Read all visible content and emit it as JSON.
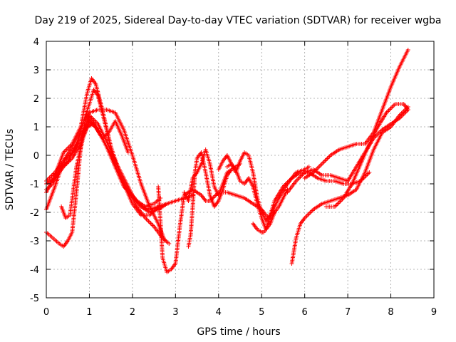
{
  "chart_data": {
    "type": "scatter",
    "title": "Day 219 of 2025, Sidereal Day-to-day VTEC variation (SDTVAR) for receiver wgba",
    "xlabel": "GPS time / hours",
    "ylabel": "SDTVAR / TECUs",
    "xlim": [
      0,
      9
    ],
    "ylim": [
      -5,
      4
    ],
    "x_ticks": [
      0,
      1,
      2,
      3,
      4,
      5,
      6,
      7,
      8,
      9
    ],
    "y_ticks": [
      -5,
      -4,
      -3,
      -2,
      -1,
      0,
      1,
      2,
      3,
      4
    ],
    "grid": true,
    "marker": "+",
    "series_color": "#ff0000",
    "series": [
      {
        "x": [
          0.0,
          0.2,
          0.4,
          0.6,
          0.8,
          1.0,
          1.1,
          1.2,
          1.4,
          1.6,
          1.8,
          2.0,
          2.2,
          2.4,
          2.6,
          2.8
        ],
        "y": [
          -1.9,
          -1.1,
          -0.2,
          0.3,
          0.9,
          1.8,
          2.3,
          2.1,
          0.9,
          -0.4,
          -1.1,
          -1.4,
          -1.8,
          -2.0,
          -1.9,
          -1.7
        ]
      },
      {
        "x": [
          0.0,
          0.2,
          0.4,
          0.6,
          0.8,
          0.95,
          1.05,
          1.15,
          1.3,
          1.5,
          1.7,
          1.9,
          2.1,
          2.3,
          2.5,
          2.7,
          2.85
        ],
        "y": [
          -1.3,
          -0.7,
          0.1,
          0.4,
          1.0,
          2.2,
          2.7,
          2.5,
          1.6,
          0.3,
          -0.6,
          -1.2,
          -1.8,
          -2.2,
          -2.5,
          -2.9,
          -3.1
        ]
      },
      {
        "x": [
          0.0,
          0.2,
          0.4,
          0.6,
          0.8,
          1.0,
          1.2,
          1.4,
          1.6,
          1.8,
          2.0,
          2.2,
          2.4,
          2.6
        ],
        "y": [
          -1.0,
          -0.8,
          -0.4,
          -0.1,
          0.4,
          1.2,
          0.9,
          0.3,
          -0.4,
          -1.0,
          -1.7,
          -2.1,
          -2.1,
          -1.8
        ]
      },
      {
        "x": [
          0.0,
          0.2,
          0.4,
          0.6,
          0.8,
          1.0,
          1.2,
          1.4,
          1.6,
          1.8,
          2.0,
          2.2,
          2.4,
          2.6,
          2.8,
          3.0,
          3.2,
          3.4
        ],
        "y": [
          -0.9,
          -0.6,
          -0.2,
          0.1,
          0.6,
          1.4,
          1.1,
          0.5,
          -0.2,
          -0.8,
          -1.4,
          -1.8,
          -1.9,
          -1.8,
          -1.7,
          -1.6,
          -1.5,
          -1.4
        ]
      },
      {
        "x": [
          0.0,
          0.15,
          0.3,
          0.5,
          0.65,
          0.8,
          0.95,
          1.1,
          1.3,
          1.5,
          1.7,
          1.9,
          2.1,
          2.3,
          2.5,
          2.65
        ],
        "y": [
          -1.2,
          -1.0,
          -0.5,
          -0.2,
          0.2,
          0.8,
          1.0,
          1.1,
          0.6,
          0.0,
          -0.7,
          -1.3,
          -1.6,
          -1.8,
          -1.7,
          -1.5
        ]
      },
      {
        "x": [
          0.0,
          0.15,
          0.3,
          0.4,
          0.5,
          0.6,
          0.7,
          0.8,
          0.9,
          1.0,
          1.2,
          1.4,
          1.6,
          1.8,
          2.0,
          2.2,
          2.4,
          2.6,
          2.75
        ],
        "y": [
          -2.7,
          -2.9,
          -3.1,
          -3.2,
          -3.0,
          -2.7,
          -1.3,
          0.3,
          1.2,
          1.5,
          1.6,
          1.6,
          1.5,
          0.9,
          0.0,
          -1.0,
          -1.8,
          -2.4,
          -3.0
        ]
      },
      {
        "x": [
          0.35,
          0.45,
          0.55,
          0.7,
          0.85,
          1.0,
          1.15,
          1.3,
          1.45,
          1.6,
          1.75,
          1.9
        ],
        "y": [
          -1.8,
          -2.2,
          -2.1,
          -0.4,
          0.6,
          1.3,
          1.0,
          0.6,
          0.8,
          1.2,
          0.7,
          0.1
        ]
      },
      {
        "x": [
          2.6,
          2.7,
          2.8,
          2.9,
          3.0,
          3.1,
          3.2,
          3.4,
          3.6,
          3.7,
          3.8,
          4.0,
          4.2,
          4.4,
          4.6,
          4.8,
          5.0,
          5.1,
          5.2,
          5.4,
          5.6
        ],
        "y": [
          -1.1,
          -3.6,
          -4.1,
          -4.0,
          -3.8,
          -2.5,
          -1.4,
          -1.2,
          -1.4,
          -1.6,
          -1.6,
          -1.3,
          -1.3,
          -1.4,
          -1.5,
          -1.7,
          -1.9,
          -2.1,
          -2.2,
          -1.8,
          -1.2
        ]
      },
      {
        "x": [
          3.2,
          3.3,
          3.4,
          3.5,
          3.6,
          3.7,
          3.8,
          3.9,
          4.0,
          4.1,
          4.2,
          4.3,
          4.4,
          4.5
        ],
        "y": [
          -1.3,
          -1.6,
          -0.8,
          -0.6,
          -0.3,
          0.2,
          -0.3,
          -1.1,
          -1.4,
          -1.0,
          -0.6,
          -0.5,
          -0.4,
          -0.3
        ]
      },
      {
        "x": [
          3.3,
          3.35,
          3.4,
          3.45,
          3.5,
          3.6,
          3.7,
          3.8,
          3.9,
          4.0,
          4.1,
          4.2,
          4.3
        ],
        "y": [
          -3.2,
          -2.8,
          -1.8,
          -0.6,
          -0.1,
          0.1,
          -0.6,
          -1.4,
          -1.8,
          -1.6,
          -1.2,
          -0.7,
          -0.5
        ]
      },
      {
        "x": [
          4.0,
          4.1,
          4.2,
          4.3,
          4.4,
          4.5,
          4.6,
          4.7,
          4.8,
          4.9,
          5.0,
          5.1,
          5.2,
          5.4,
          5.6,
          5.8,
          6.0,
          6.1
        ],
        "y": [
          -0.5,
          -0.2,
          0.0,
          -0.3,
          -0.6,
          -0.2,
          0.1,
          0.0,
          -0.6,
          -1.5,
          -2.0,
          -2.3,
          -2.1,
          -1.5,
          -1.0,
          -0.6,
          -0.5,
          -0.4
        ]
      },
      {
        "x": [
          4.2,
          4.3,
          4.4,
          4.5,
          4.6,
          4.7,
          4.8,
          4.9,
          5.0,
          5.1,
          5.2,
          5.3
        ],
        "y": [
          -0.4,
          -0.3,
          -0.5,
          -0.9,
          -1.0,
          -0.8,
          -1.1,
          -1.7,
          -2.2,
          -2.6,
          -2.4,
          -2.0
        ]
      },
      {
        "x": [
          4.8,
          4.9,
          5.0,
          5.05,
          5.1,
          5.2,
          5.3,
          5.5,
          5.7,
          5.9,
          6.1,
          6.3,
          6.5,
          6.7,
          6.9,
          7.1,
          7.3,
          7.5
        ],
        "y": [
          -2.4,
          -2.6,
          -2.7,
          -2.7,
          -2.6,
          -2.1,
          -1.6,
          -1.1,
          -0.8,
          -0.6,
          -0.6,
          -0.8,
          -0.9,
          -0.9,
          -1.0,
          -1.0,
          -0.9,
          -0.6
        ]
      },
      {
        "x": [
          5.6,
          5.8,
          6.0,
          6.2,
          6.4,
          6.6,
          6.8,
          7.0,
          7.2,
          7.4,
          7.6,
          7.8,
          8.0,
          8.2,
          8.4
        ],
        "y": [
          -1.3,
          -0.9,
          -0.6,
          -0.5,
          -0.7,
          -0.7,
          -0.8,
          -0.9,
          -0.4,
          0.1,
          0.6,
          0.9,
          1.1,
          1.3,
          1.6
        ]
      },
      {
        "x": [
          5.7,
          5.8,
          5.9,
          6.0,
          6.2,
          6.4,
          6.6,
          6.8,
          7.0,
          7.2,
          7.4,
          7.6,
          7.8,
          8.0,
          8.2,
          8.4
        ],
        "y": [
          -3.8,
          -2.9,
          -2.4,
          -2.2,
          -1.9,
          -1.7,
          -1.6,
          -1.5,
          -1.4,
          -1.2,
          -0.6,
          0.2,
          0.8,
          1.0,
          1.4,
          1.7
        ]
      },
      {
        "x": [
          6.0,
          6.2,
          6.4,
          6.6,
          6.8,
          7.0,
          7.2,
          7.4,
          7.6,
          7.8,
          8.0,
          8.2,
          8.4
        ],
        "y": [
          -0.8,
          -0.6,
          -0.3,
          0.0,
          0.2,
          0.3,
          0.4,
          0.4,
          0.8,
          1.6,
          2.4,
          3.1,
          3.7
        ]
      },
      {
        "x": [
          6.5,
          6.7,
          6.9,
          7.1,
          7.3,
          7.5,
          7.7,
          7.9,
          8.1,
          8.3,
          8.4
        ],
        "y": [
          -1.8,
          -1.8,
          -1.5,
          -1.0,
          -0.3,
          0.4,
          1.0,
          1.5,
          1.8,
          1.8,
          1.6
        ]
      }
    ]
  }
}
